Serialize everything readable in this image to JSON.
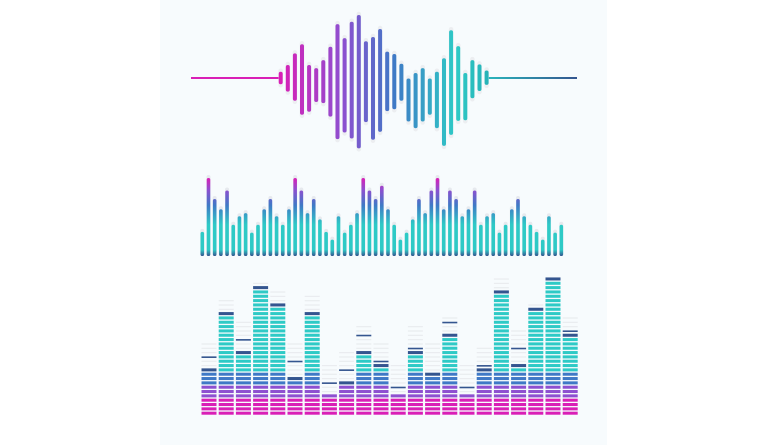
{
  "colors": {
    "magenta": "#d91fb6",
    "purple": "#8e4fd0",
    "blue": "#3f79c6",
    "teal": "#2ecac6",
    "navy": "#34558f",
    "empty": "#e9ecef",
    "background": "#f7fbfd"
  },
  "waveform": {
    "amplitudes_up": [
      0.07,
      0.18,
      0.37,
      0.52,
      0.18,
      0.13,
      0.26,
      0.48,
      0.85,
      0.62,
      0.89,
      1.0,
      0.57,
      0.64,
      0.77,
      0.4,
      0.36,
      0.2,
      -0.04,
      0.05,
      0.13,
      -0.04,
      0.07,
      0.29,
      0.75,
      0.49,
      0.05,
      0.26,
      0.19,
      0.09
    ],
    "amplitudes_down": [
      0.07,
      0.19,
      0.34,
      0.57,
      0.52,
      0.36,
      0.38,
      0.6,
      0.97,
      0.86,
      0.96,
      1.12,
      0.69,
      0.98,
      0.85,
      0.51,
      0.48,
      0.34,
      0.68,
      0.79,
      0.68,
      0.57,
      0.79,
      1.08,
      0.9,
      0.67,
      0.66,
      0.3,
      0.18,
      0.08
    ]
  },
  "spectrum": {
    "levels": [
      0.31,
      1.0,
      0.73,
      0.6,
      0.84,
      0.4,
      0.51,
      0.55,
      0.3,
      0.4,
      0.6,
      0.73,
      0.51,
      0.4,
      0.6,
      1.0,
      0.84,
      0.55,
      0.73,
      0.47,
      0.31,
      0.21,
      0.51,
      0.3,
      0.4,
      0.55,
      1.0,
      0.84,
      0.73,
      0.9,
      0.6,
      0.4,
      0.21,
      0.3,
      0.47,
      0.73,
      0.55,
      0.84,
      1.0,
      0.6,
      0.84,
      0.73,
      0.51,
      0.6,
      0.84,
      0.4,
      0.51,
      0.55,
      0.3,
      0.4,
      0.6,
      0.73,
      0.51,
      0.4,
      0.31,
      0.21,
      0.51,
      0.3,
      0.4
    ]
  },
  "equalizer": {
    "max_segments": 33,
    "levels": [
      11,
      24,
      15,
      30,
      26,
      9,
      24,
      5,
      8,
      15,
      12,
      5,
      15,
      10,
      19,
      5,
      11,
      29,
      12,
      25,
      32,
      19
    ],
    "peaks": [
      14,
      24,
      18,
      30,
      26,
      13,
      24,
      8,
      11,
      19,
      13,
      7,
      16,
      10,
      22,
      7,
      12,
      29,
      16,
      25,
      32,
      20
    ],
    "ghost": [
      17,
      27,
      22,
      31,
      29,
      17,
      28,
      12,
      15,
      21,
      17,
      12,
      21,
      17,
      23,
      12,
      16,
      32,
      20,
      26,
      32,
      23
    ]
  }
}
